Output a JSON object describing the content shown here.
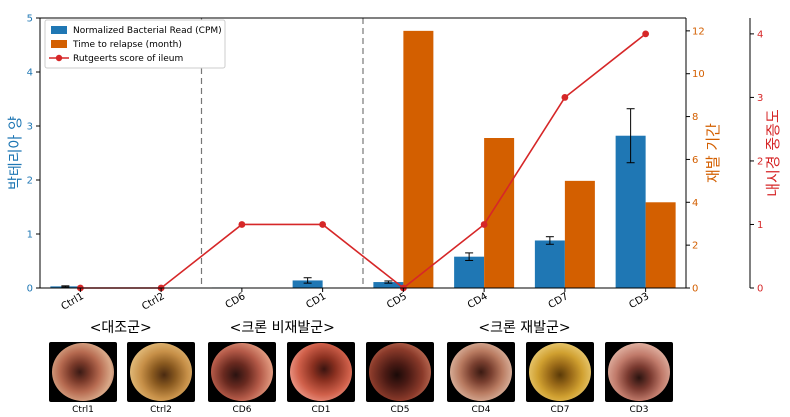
{
  "chart_data": {
    "type": "bar",
    "categories": [
      "Ctrl1",
      "Ctrl2",
      "CD6",
      "CD1",
      "CD5",
      "CD4",
      "CD7",
      "CD3"
    ],
    "series": [
      {
        "name": "Normalized Bacterial Read (CPM)",
        "axis": "left",
        "color": "#1f77b4",
        "values": [
          0.03,
          0.0,
          0.01,
          0.14,
          0.11,
          0.58,
          0.88,
          2.82
        ],
        "errors": [
          0.01,
          0.0,
          0.0,
          0.05,
          0.02,
          0.07,
          0.07,
          0.5
        ]
      },
      {
        "name": "Time to relapse (month)",
        "axis": "right1",
        "color": "#d35f00",
        "values": [
          0,
          0,
          0,
          0,
          12,
          7,
          5,
          4
        ]
      },
      {
        "name": "Rutgeerts score of ileum",
        "type": "line",
        "axis": "right2",
        "color": "#d62728",
        "values": [
          0,
          0,
          1,
          1,
          0,
          1,
          3,
          4
        ]
      }
    ],
    "axes": {
      "left": {
        "label": "박테리아 양",
        "ylim": [
          0,
          5
        ],
        "ticks": [
          0,
          1,
          2,
          3,
          4,
          5
        ],
        "color": "#1f77b4"
      },
      "right1": {
        "label": "재발 기간",
        "ylim": [
          0,
          12.6
        ],
        "ticks": [
          0,
          2,
          4,
          6,
          8,
          10,
          12
        ],
        "color": "#d35f00"
      },
      "right2": {
        "label": "내시경 중증도",
        "ylim": [
          0,
          4.25
        ],
        "ticks": [
          0,
          1,
          2,
          3,
          4
        ],
        "color": "#d62728"
      }
    },
    "group_labels": [
      "<대조군>",
      "<크론 비재발군>",
      "<크론 재발군>"
    ],
    "legend_position": "top-left",
    "grid": false
  },
  "thumbnails": [
    "Ctrl1",
    "Ctrl2",
    "CD6",
    "CD1",
    "CD5",
    "CD4",
    "CD7",
    "CD3"
  ]
}
